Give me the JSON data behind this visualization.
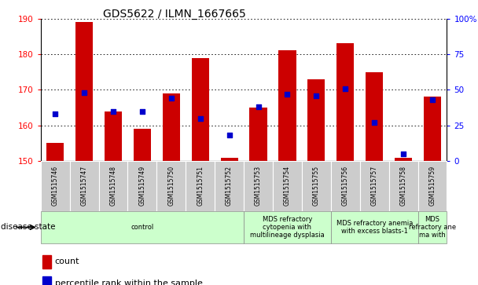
{
  "title": "GDS5622 / ILMN_1667665",
  "samples": [
    "GSM1515746",
    "GSM1515747",
    "GSM1515748",
    "GSM1515749",
    "GSM1515750",
    "GSM1515751",
    "GSM1515752",
    "GSM1515753",
    "GSM1515754",
    "GSM1515755",
    "GSM1515756",
    "GSM1515757",
    "GSM1515758",
    "GSM1515759"
  ],
  "counts": [
    155,
    189,
    164,
    159,
    169,
    179,
    151,
    165,
    181,
    173,
    183,
    175,
    151,
    168
  ],
  "percentile_ranks": [
    33,
    48,
    35,
    35,
    44,
    30,
    18,
    38,
    47,
    46,
    51,
    27,
    5,
    43
  ],
  "ylim_left": [
    150,
    190
  ],
  "ylim_right": [
    0,
    100
  ],
  "yticks_left": [
    150,
    160,
    170,
    180,
    190
  ],
  "yticks_right": [
    0,
    25,
    50,
    75,
    100
  ],
  "bar_color": "#cc0000",
  "dot_color": "#0000cc",
  "bar_width": 0.6,
  "group_boundaries": [
    0,
    7,
    10,
    13,
    14
  ],
  "group_labels": [
    "control",
    "MDS refractory\ncytopenia with\nmultilineage dysplasia",
    "MDS refractory anemia\nwith excess blasts-1",
    "MDS\nrefractory ane\nma with"
  ],
  "group_colors": [
    "#ccffcc",
    "#ccffcc",
    "#ccffcc",
    "#ccffcc"
  ],
  "disease_state_label": "disease state",
  "legend_count_label": "count",
  "legend_percentile_label": "percentile rank within the sample",
  "sample_bg_color": "#cccccc",
  "grid_color": "#000000",
  "plot_bg_color": "#ffffff"
}
